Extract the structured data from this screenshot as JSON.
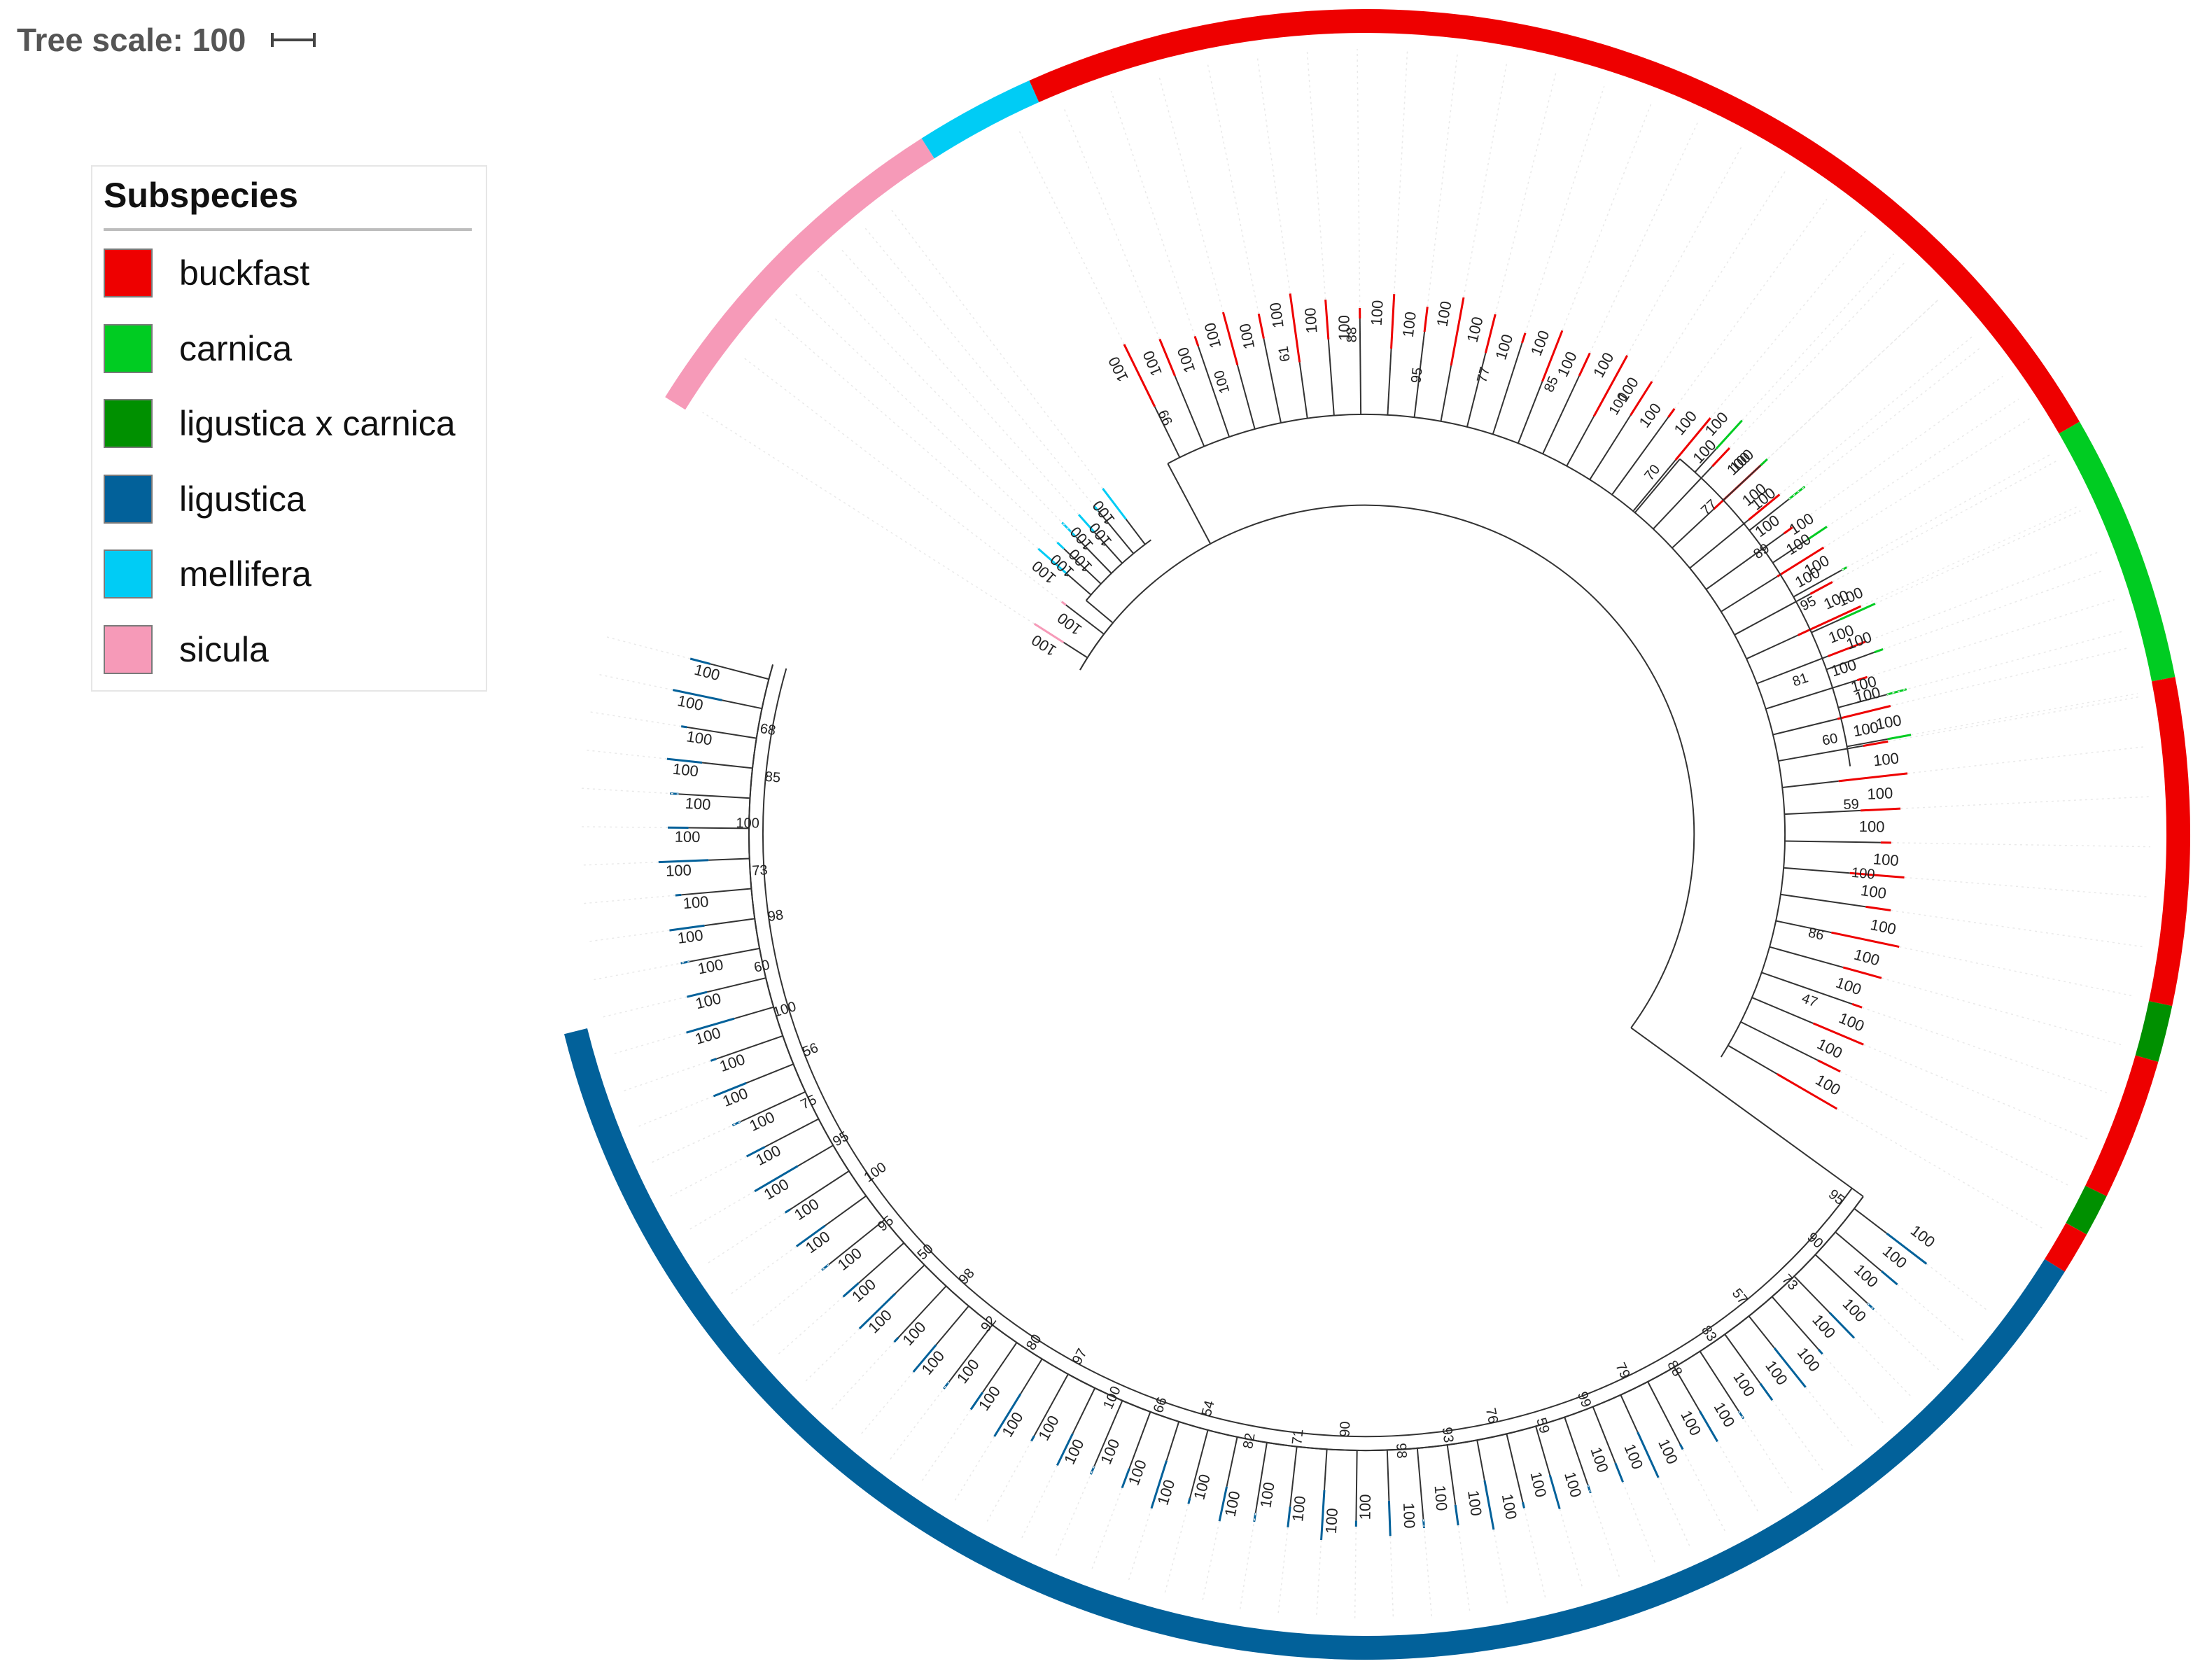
{
  "scale": {
    "label": "Tree scale: 100"
  },
  "legend": {
    "title": "Subspecies",
    "items": [
      {
        "label": "buckfast",
        "color": "#ee0000"
      },
      {
        "label": "carnica",
        "color": "#00cc22"
      },
      {
        "label": "ligustica x carnica",
        "color": "#009000"
      },
      {
        "label": "ligustica",
        "color": "#02619a"
      },
      {
        "label": "mellifera",
        "color": "#00ccf5"
      },
      {
        "label": "sicula",
        "color": "#f69ab8"
      }
    ]
  },
  "ring": [
    {
      "subspecies": "sicula",
      "color": "#f69ab8"
    },
    {
      "subspecies": "mellifera",
      "color": "#00ccf5"
    },
    {
      "subspecies": "buckfast",
      "color": "#ee0000"
    },
    {
      "subspecies": "carnica",
      "color": "#00cc22"
    },
    {
      "subspecies": "buckfast",
      "color": "#ee0000"
    },
    {
      "subspecies": "ligustica x carnica",
      "color": "#009000"
    },
    {
      "subspecies": "buckfast",
      "color": "#ee0000"
    },
    {
      "subspecies": "ligustica x carnica",
      "color": "#009000"
    },
    {
      "subspecies": "buckfast",
      "color": "#ee0000"
    },
    {
      "subspecies": "ligustica",
      "color": "#02619a"
    }
  ],
  "clades": [
    {
      "subspecies": "buckfast",
      "color": "#ee0000",
      "labels": [
        "100",
        "100",
        "100",
        "100",
        "100",
        "100",
        "100",
        "100",
        "100",
        "100",
        "100",
        "100",
        "100",
        "100",
        "100",
        "100",
        "100",
        "100",
        "100",
        "100",
        "100",
        "100",
        "100",
        "100",
        "100",
        "100",
        "100",
        "100",
        "100",
        "100",
        "100",
        "100",
        "100",
        "100",
        "100",
        "100",
        "100",
        "100",
        "100",
        "100",
        "100"
      ]
    },
    {
      "subspecies": "carnica",
      "color": "#00cc22",
      "labels": [
        "100",
        "100",
        "100",
        "100",
        "100",
        "100",
        "100",
        "100",
        "100"
      ]
    },
    {
      "subspecies": "ligustica",
      "color": "#02619a",
      "labels": [
        "100",
        "100",
        "100",
        "100",
        "100",
        "100",
        "100",
        "100",
        "100",
        "100",
        "100",
        "100",
        "100",
        "100",
        "100",
        "100",
        "100",
        "100",
        "100",
        "100",
        "100",
        "100",
        "100",
        "100",
        "100",
        "100",
        "100",
        "100",
        "100",
        "100",
        "100",
        "100",
        "100",
        "100",
        "100",
        "100",
        "100",
        "100",
        "100",
        "100",
        "100",
        "100",
        "100",
        "100",
        "100",
        "100",
        "100",
        "100",
        "100",
        "100",
        "100",
        "100",
        "100",
        "100",
        "100",
        "100",
        "100"
      ]
    },
    {
      "subspecies": "mellifera",
      "color": "#00ccf5",
      "labels": [
        "100",
        "100",
        "100",
        "100",
        "100",
        "100"
      ]
    },
    {
      "subspecies": "sicula",
      "color": "#f69ab8",
      "labels": [
        "100",
        "100"
      ]
    }
  ],
  "internal_support": [
    "99",
    "100",
    "61",
    "88",
    "95",
    "77",
    "85",
    "100",
    "70",
    "77",
    "89",
    "95",
    "81",
    "60",
    "59",
    "100",
    "86",
    "47",
    "95",
    "90",
    "73",
    "57",
    "83",
    "88",
    "79",
    "99",
    "59",
    "76",
    "93",
    "98",
    "90",
    "71",
    "82",
    "54",
    "66",
    "100",
    "97",
    "80",
    "92",
    "98",
    "50",
    "95",
    "100",
    "95",
    "75",
    "56",
    "100",
    "60",
    "98",
    "73",
    "100",
    "85",
    "68"
  ]
}
